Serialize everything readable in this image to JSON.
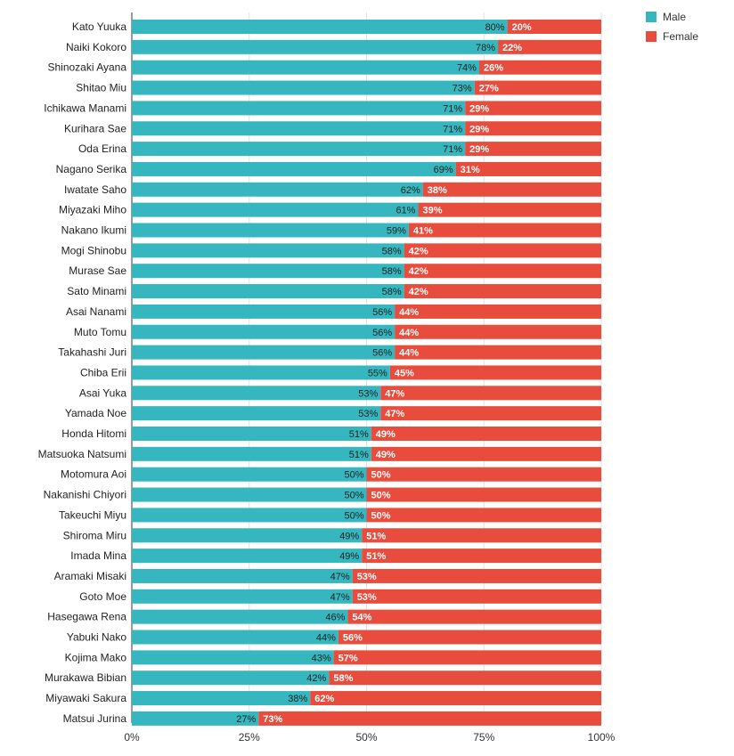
{
  "chart_data": {
    "type": "bar",
    "orientation": "horizontal",
    "stacked": true,
    "title": "",
    "xlabel": "",
    "ylabel": "",
    "xlim": [
      0,
      100
    ],
    "x_ticks": [
      "0%",
      "25%",
      "50%",
      "75%",
      "100%"
    ],
    "categories": [
      "Kato Yuuka",
      "Naiki Kokoro",
      "Shinozaki Ayana",
      "Shitao Miu",
      "Ichikawa Manami",
      "Kurihara Sae",
      "Oda Erina",
      "Nagano Serika",
      "Iwatate Saho",
      "Miyazaki Miho",
      "Nakano Ikumi",
      "Mogi Shinobu",
      "Murase Sae",
      "Sato Minami",
      "Asai Nanami",
      "Muto Tomu",
      "Takahashi Juri",
      "Chiba Erii",
      "Asai Yuka",
      "Yamada Noe",
      "Honda Hitomi",
      "Matsuoka Natsumi",
      "Motomura Aoi",
      "Nakanishi Chiyori",
      "Takeuchi Miyu",
      "Shiroma Miru",
      "Imada Mina",
      "Aramaki Misaki",
      "Goto Moe",
      "Hasegawa Rena",
      "Yabuki Nako",
      "Kojima Mako",
      "Murakawa Bibian",
      "Miyawaki Sakura",
      "Matsui Jurina"
    ],
    "series": [
      {
        "name": "Male",
        "color": "#36b7bf",
        "values": [
          80,
          78,
          74,
          73,
          71,
          71,
          71,
          69,
          62,
          61,
          59,
          58,
          58,
          58,
          56,
          56,
          56,
          55,
          53,
          53,
          51,
          51,
          50,
          50,
          50,
          49,
          49,
          47,
          47,
          46,
          44,
          43,
          42,
          38,
          27
        ]
      },
      {
        "name": "Female",
        "color": "#e84c3d",
        "values": [
          20,
          22,
          26,
          27,
          29,
          29,
          29,
          31,
          38,
          39,
          41,
          42,
          42,
          42,
          44,
          44,
          44,
          45,
          47,
          47,
          49,
          49,
          50,
          50,
          50,
          51,
          51,
          53,
          53,
          54,
          56,
          57,
          58,
          62,
          73
        ]
      }
    ],
    "legend": {
      "position": "top-right"
    },
    "grid": true
  }
}
